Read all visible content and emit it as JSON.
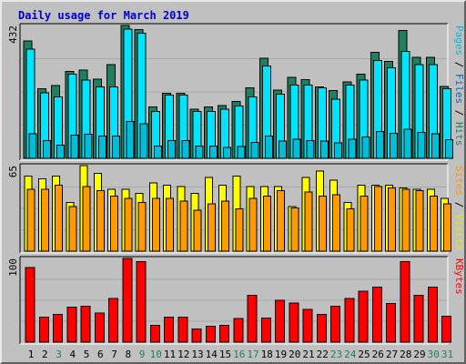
{
  "chart_title": "Daily usage for March 2019",
  "chart_data": [
    {
      "type": "bar",
      "title": "Pages / Files / Hits",
      "ylim": [
        0,
        432
      ],
      "y_max_label": "432",
      "categories": [
        "1",
        "2",
        "3",
        "4",
        "5",
        "6",
        "7",
        "8",
        "9",
        "10",
        "11",
        "12",
        "13",
        "14",
        "15",
        "16",
        "17",
        "18",
        "19",
        "20",
        "21",
        "22",
        "23",
        "24",
        "25",
        "26",
        "27",
        "28",
        "29",
        "30",
        "31"
      ],
      "series": [
        {
          "name": "Hits",
          "color": "#1f7f5f",
          "values": [
            382,
            227,
            236,
            283,
            287,
            258,
            305,
            432,
            418,
            167,
            212,
            212,
            160,
            167,
            172,
            185,
            230,
            325,
            222,
            264,
            256,
            233,
            220,
            248,
            273,
            345,
            315,
            416,
            328,
            328,
            234
          ]
        },
        {
          "name": "Files",
          "color": "#00e4ff",
          "values": [
            355,
            213,
            200,
            273,
            255,
            233,
            233,
            420,
            407,
            152,
            206,
            206,
            152,
            152,
            160,
            170,
            200,
            300,
            208,
            238,
            238,
            230,
            193,
            238,
            255,
            318,
            295,
            348,
            305,
            305,
            226
          ]
        },
        {
          "name": "Pages",
          "color": "#00bed8",
          "values": [
            80,
            58,
            43,
            75,
            78,
            72,
            72,
            120,
            112,
            40,
            58,
            58,
            40,
            40,
            35,
            38,
            52,
            72,
            56,
            62,
            58,
            56,
            50,
            62,
            70,
            88,
            82,
            95,
            85,
            80,
            60
          ]
        }
      ]
    },
    {
      "type": "bar",
      "title": "Sites / Visits",
      "ylim": [
        0,
        65
      ],
      "y_max_label": "65",
      "categories": [
        "1",
        "2",
        "3",
        "4",
        "5",
        "6",
        "7",
        "8",
        "9",
        "10",
        "11",
        "12",
        "13",
        "14",
        "15",
        "16",
        "17",
        "18",
        "19",
        "20",
        "21",
        "22",
        "23",
        "24",
        "25",
        "26",
        "27",
        "28",
        "29",
        "30",
        "31"
      ],
      "series": [
        {
          "name": "Visits",
          "color": "#ffff00",
          "values": [
            57,
            55,
            57,
            37,
            65,
            59,
            47,
            47,
            44,
            52,
            50,
            49,
            44,
            56,
            50,
            57,
            49,
            49,
            49,
            34,
            56,
            61,
            54,
            37,
            50,
            50,
            50,
            48,
            47,
            47,
            40
          ]
        },
        {
          "name": "Sites",
          "color": "#ff9900",
          "values": [
            47,
            47,
            50,
            34,
            49,
            46,
            42,
            40,
            37,
            40,
            40,
            38,
            31,
            36,
            38,
            32,
            40,
            42,
            46,
            33,
            45,
            42,
            43,
            32,
            42,
            49,
            48,
            47,
            46,
            42,
            36
          ]
        }
      ]
    },
    {
      "type": "bar",
      "title": "KBytes",
      "ylim": [
        0,
        100
      ],
      "y_max_label": "100",
      "categories": [
        "1",
        "2",
        "3",
        "4",
        "5",
        "6",
        "7",
        "8",
        "9",
        "10",
        "11",
        "12",
        "13",
        "14",
        "15",
        "16",
        "17",
        "18",
        "19",
        "20",
        "21",
        "22",
        "23",
        "24",
        "25",
        "26",
        "27",
        "28",
        "29",
        "30",
        "31"
      ],
      "series": [
        {
          "name": "KBytes",
          "color": "#ff0000",
          "values": [
            89,
            30,
            33,
            42,
            43,
            35,
            52,
            100,
            96,
            20,
            30,
            30,
            16,
            19,
            20,
            28,
            56,
            29,
            50,
            47,
            39,
            33,
            43,
            52,
            61,
            66,
            46,
            96,
            56,
            66,
            31
          ]
        }
      ]
    }
  ],
  "x_labels": [
    {
      "text": "1",
      "color": "#000000"
    },
    {
      "text": "2",
      "color": "#000000"
    },
    {
      "text": "3",
      "color": "#1f7f5f"
    },
    {
      "text": "4",
      "color": "#000000"
    },
    {
      "text": "5",
      "color": "#000000"
    },
    {
      "text": "6",
      "color": "#000000"
    },
    {
      "text": "7",
      "color": "#000000"
    },
    {
      "text": "8",
      "color": "#000000"
    },
    {
      "text": "9",
      "color": "#1f7f5f"
    },
    {
      "text": "10",
      "color": "#1f7f5f"
    },
    {
      "text": "11",
      "color": "#000000"
    },
    {
      "text": "12",
      "color": "#000000"
    },
    {
      "text": "13",
      "color": "#000000"
    },
    {
      "text": "14",
      "color": "#000000"
    },
    {
      "text": "15",
      "color": "#000000"
    },
    {
      "text": "16",
      "color": "#1f7f5f"
    },
    {
      "text": "17",
      "color": "#1f7f5f"
    },
    {
      "text": "18",
      "color": "#000000"
    },
    {
      "text": "19",
      "color": "#000000"
    },
    {
      "text": "20",
      "color": "#000000"
    },
    {
      "text": "21",
      "color": "#000000"
    },
    {
      "text": "22",
      "color": "#000000"
    },
    {
      "text": "23",
      "color": "#1f7f5f"
    },
    {
      "text": "24",
      "color": "#1f7f5f"
    },
    {
      "text": "25",
      "color": "#000000"
    },
    {
      "text": "26",
      "color": "#000000"
    },
    {
      "text": "27",
      "color": "#000000"
    },
    {
      "text": "28",
      "color": "#000000"
    },
    {
      "text": "29",
      "color": "#000000"
    },
    {
      "text": "30",
      "color": "#1f7f5f"
    },
    {
      "text": "31",
      "color": "#1f7f5f"
    }
  ],
  "right_labels": {
    "top": [
      {
        "text": "Pages",
        "color": "#00bed8"
      },
      {
        "text": " / ",
        "color": "#000000"
      },
      {
        "text": "Files",
        "color": "#0066cc"
      },
      {
        "text": " / ",
        "color": "#000000"
      },
      {
        "text": "Hits",
        "color": "#1f7f5f"
      }
    ],
    "middle": [
      {
        "text": "Sites",
        "color": "#ff9900"
      },
      {
        "text": " / ",
        "color": "#000000"
      },
      {
        "text": "Visits",
        "color": "#e8e800"
      }
    ],
    "bottom": [
      {
        "text": "KBytes",
        "color": "#ff0000"
      }
    ]
  }
}
